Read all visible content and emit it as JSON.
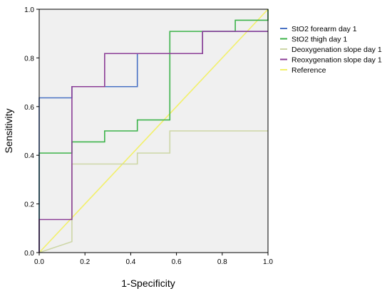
{
  "chart_data": {
    "type": "line",
    "title": "",
    "xlabel": "1-Specificity",
    "ylabel": "Sensitivity",
    "xlim": [
      0,
      1
    ],
    "ylim": [
      0,
      1
    ],
    "xticks": [
      "0.0",
      "0.2",
      "0.4",
      "0.6",
      "0.8",
      "1.0"
    ],
    "yticks": [
      "0.0",
      "0.2",
      "0.4",
      "0.6",
      "0.8",
      "1.0"
    ],
    "grid": false,
    "legend_position": "right",
    "series": [
      {
        "name": "StO2 forearm day 1",
        "color": "#4a72c4",
        "points": [
          [
            0,
            0
          ],
          [
            0,
            0.636
          ],
          [
            0.143,
            0.636
          ],
          [
            0.143,
            0.682
          ],
          [
            0.429,
            0.682
          ],
          [
            0.429,
            0.818
          ],
          [
            0.714,
            0.818
          ],
          [
            0.714,
            0.909
          ],
          [
            1,
            0.909
          ]
        ]
      },
      {
        "name": "StO2 thigh day 1",
        "color": "#3cb34a",
        "points": [
          [
            0,
            0
          ],
          [
            0,
            0.409
          ],
          [
            0.143,
            0.409
          ],
          [
            0.143,
            0.455
          ],
          [
            0.286,
            0.455
          ],
          [
            0.286,
            0.5
          ],
          [
            0.429,
            0.5
          ],
          [
            0.429,
            0.545
          ],
          [
            0.571,
            0.545
          ],
          [
            0.571,
            0.909
          ],
          [
            0.857,
            0.909
          ],
          [
            0.857,
            0.955
          ],
          [
            1,
            0.955
          ],
          [
            1,
            1
          ]
        ]
      },
      {
        "name": "Deoxygenation slope day 1",
        "color": "#cdd6a6",
        "points": [
          [
            0,
            0
          ],
          [
            0.143,
            0.045
          ],
          [
            0.143,
            0.364
          ],
          [
            0.429,
            0.364
          ],
          [
            0.429,
            0.409
          ],
          [
            0.571,
            0.409
          ],
          [
            0.571,
            0.5
          ],
          [
            1,
            0.5
          ]
        ]
      },
      {
        "name": "Reoxygenation slope day 1",
        "color": "#8b3d96",
        "points": [
          [
            0,
            0
          ],
          [
            0,
            0.136
          ],
          [
            0.143,
            0.136
          ],
          [
            0.143,
            0.682
          ],
          [
            0.286,
            0.682
          ],
          [
            0.286,
            0.818
          ],
          [
            0.714,
            0.818
          ],
          [
            0.714,
            0.909
          ],
          [
            1,
            0.909
          ]
        ]
      },
      {
        "name": "Reference",
        "color": "#f2f06a",
        "points": [
          [
            0,
            0
          ],
          [
            1,
            1
          ]
        ]
      }
    ]
  }
}
